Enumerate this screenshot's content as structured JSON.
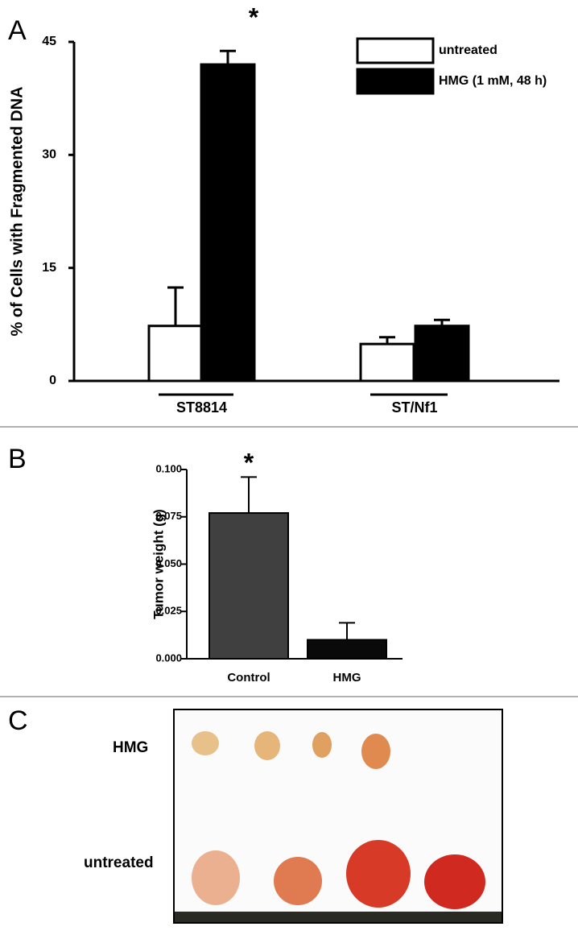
{
  "chart_data": [
    {
      "panel": "A",
      "type": "bar",
      "ylabel": "% of Cells with Fragmented DNA",
      "annotation": "*",
      "categories": [
        "ST8814",
        "ST/Nf1"
      ],
      "series": [
        {
          "name": "untreated",
          "color": "#ffffff",
          "values": [
            7.3,
            4.9
          ],
          "errors": [
            5.1,
            0.9
          ]
        },
        {
          "name": "HMG (1 mM, 48 h)",
          "color": "#000000",
          "values": [
            42,
            7.3
          ],
          "errors": [
            1.8,
            0.8
          ]
        }
      ],
      "ylim": [
        0,
        45
      ],
      "yticks": [
        0,
        15,
        30,
        45
      ]
    },
    {
      "panel": "B",
      "type": "bar",
      "ylabel": "Tumor weight (g)",
      "annotation": "*",
      "categories": [
        "Control",
        "HMG"
      ],
      "series": [
        {
          "colors": [
            "#404040",
            "#0a0a0a"
          ],
          "values": [
            0.077,
            0.01
          ],
          "errors": [
            0.019,
            0.009
          ]
        }
      ],
      "ylim": [
        0,
        0.1
      ],
      "yticks": [
        {
          "value": 0,
          "label": "0.000"
        },
        {
          "value": 0.025,
          "label": "0.025"
        },
        {
          "value": 0.05,
          "label": "0.050"
        },
        {
          "value": 0.075,
          "label": "0.075"
        },
        {
          "value": 0.1,
          "label": "0.100"
        }
      ]
    }
  ],
  "photo": {
    "panel": "C",
    "rows": [
      "HMG",
      "untreated"
    ]
  }
}
